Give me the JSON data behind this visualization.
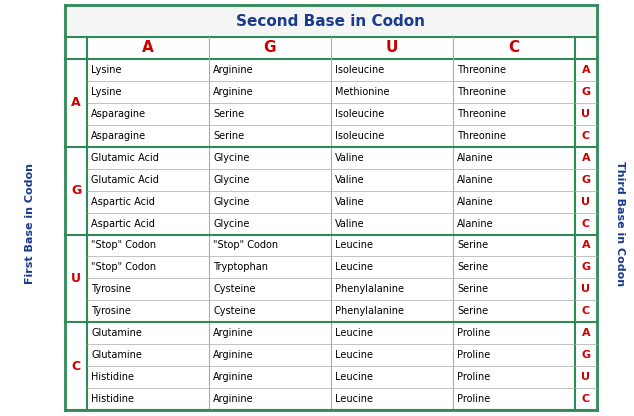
{
  "title": "Second Base in Codon",
  "title_color": "#1a3a8c",
  "second_base_headers": [
    "A",
    "G",
    "U",
    "C"
  ],
  "header_color": "#cc0000",
  "first_base_label": "First Base in Codon",
  "third_base_label": "Third Base in Codon",
  "label_color": "#1a3a8c",
  "first_bases": [
    "A",
    "G",
    "U",
    "C"
  ],
  "third_bases": [
    "A",
    "G",
    "U",
    "C",
    "A",
    "G",
    "U",
    "C",
    "A",
    "G",
    "U",
    "C",
    "A",
    "G",
    "U",
    "C"
  ],
  "rows": [
    [
      "Lysine",
      "Arginine",
      "Isoleucine",
      "Threonine"
    ],
    [
      "Lysine",
      "Arginine",
      "Methionine",
      "Threonine"
    ],
    [
      "Asparagine",
      "Serine",
      "Isoleucine",
      "Threonine"
    ],
    [
      "Asparagine",
      "Serine",
      "Isoleucine",
      "Threonine"
    ],
    [
      "Glutamic Acid",
      "Glycine",
      "Valine",
      "Alanine"
    ],
    [
      "Glutamic Acid",
      "Glycine",
      "Valine",
      "Alanine"
    ],
    [
      "Aspartic Acid",
      "Glycine",
      "Valine",
      "Alanine"
    ],
    [
      "Aspartic Acid",
      "Glycine",
      "Valine",
      "Alanine"
    ],
    [
      "\"Stop\" Codon",
      "\"Stop\" Codon",
      "Leucine",
      "Serine"
    ],
    [
      "\"Stop\" Codon",
      "Tryptophan",
      "Leucine",
      "Serine"
    ],
    [
      "Tyrosine",
      "Cysteine",
      "Phenylalanine",
      "Serine"
    ],
    [
      "Tyrosine",
      "Cysteine",
      "Phenylalanine",
      "Serine"
    ],
    [
      "Glutamine",
      "Arginine",
      "Leucine",
      "Proline"
    ],
    [
      "Glutamine",
      "Arginine",
      "Leucine",
      "Proline"
    ],
    [
      "Histidine",
      "Arginine",
      "Leucine",
      "Proline"
    ],
    [
      "Histidine",
      "Arginine",
      "Leucine",
      "Proline"
    ]
  ],
  "bg_color": "#ffffff",
  "outer_border_color": "#2e8b57",
  "inner_line_color": "#aaaaaa",
  "cell_text_color": "#000000"
}
